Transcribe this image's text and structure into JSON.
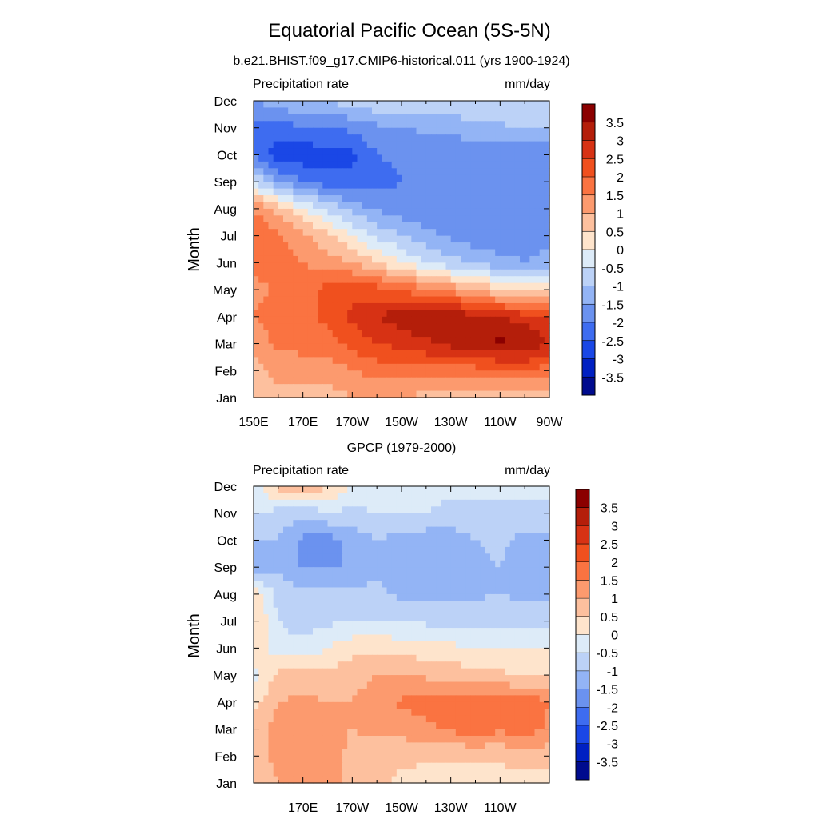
{
  "figure": {
    "title": "Equatorial Pacific Ocean (5S-5N)"
  },
  "chart_data": [
    {
      "type": "heatmap",
      "subtitle": "b.e21.BHIST.f09_g17.CMIP6-historical.011 (yrs 1900-1924)",
      "left_label": "Precipitation rate",
      "right_label": "mm/day",
      "ylabel": "Month",
      "xlabel": "",
      "xticks": [
        "150E",
        "170E",
        "170W",
        "150W",
        "130W",
        "110W",
        "90W"
      ],
      "yticks": [
        "Jan",
        "Feb",
        "Mar",
        "Apr",
        "May",
        "Jun",
        "Jul",
        "Aug",
        "Sep",
        "Oct",
        "Nov",
        "Dec"
      ],
      "xlim_deg_east": [
        150,
        270
      ],
      "colorbar": {
        "labels": [
          "3.5",
          "3",
          "2.5",
          "2",
          "1.5",
          "1",
          "0.5",
          "0",
          "-0.5",
          "-1",
          "-1.5",
          "-2",
          "-2.5",
          "-3",
          "-3.5"
        ],
        "colors": [
          "#8b0000",
          "#b41e0a",
          "#d73214",
          "#f0501e",
          "#fa7341",
          "#fc9a6e",
          "#fdc09e",
          "#fee4cc",
          "#ddebf8",
          "#bcd2f7",
          "#93b4f5",
          "#6b92ef",
          "#3e6cf0",
          "#1a47e6",
          "#0020c2",
          "#000b8e"
        ]
      },
      "x": [
        150,
        160,
        170,
        180,
        190,
        200,
        210,
        220,
        230,
        240,
        250,
        260,
        270
      ],
      "months": [
        "Jan",
        "Feb",
        "Mar",
        "Apr",
        "May",
        "Jun",
        "Jul",
        "Aug",
        "Sep",
        "Oct",
        "Nov",
        "Dec"
      ],
      "values": [
        [
          0.5,
          0.8,
          0.8,
          0.8,
          1.0,
          1.0,
          1.0,
          0.8,
          0.7,
          0.6,
          0.6,
          0.6,
          0.6
        ],
        [
          0.8,
          1.2,
          1.2,
          1.2,
          1.5,
          1.7,
          1.8,
          1.8,
          1.8,
          1.8,
          1.9,
          2.0,
          1.7
        ],
        [
          1.2,
          1.6,
          1.7,
          1.8,
          2.2,
          2.5,
          2.7,
          2.9,
          3.2,
          3.4,
          3.6,
          3.5,
          3.0
        ],
        [
          1.5,
          1.8,
          1.9,
          2.1,
          2.6,
          3.0,
          3.3,
          3.5,
          3.4,
          3.2,
          3.0,
          2.8,
          2.5
        ],
        [
          1.3,
          1.6,
          1.8,
          2.2,
          2.3,
          2.2,
          2.0,
          1.6,
          1.3,
          1.0,
          0.5,
          0.2,
          0.4
        ],
        [
          1.7,
          1.7,
          1.5,
          1.3,
          1.0,
          0.5,
          0.0,
          -0.5,
          -0.8,
          -1.1,
          -1.3,
          -1.5,
          -1.2
        ],
        [
          2.0,
          1.6,
          1.2,
          0.6,
          0.0,
          -0.6,
          -1.0,
          -1.3,
          -1.6,
          -1.8,
          -1.9,
          -1.9,
          -1.7
        ],
        [
          1.5,
          0.8,
          0.0,
          -0.6,
          -1.2,
          -1.6,
          -1.8,
          -1.9,
          -1.9,
          -1.9,
          -1.9,
          -1.9,
          -1.9
        ],
        [
          -0.5,
          -1.5,
          -2.0,
          -2.3,
          -2.4,
          -2.2,
          -2.0,
          -2.0,
          -2.0,
          -2.0,
          -2.0,
          -2.0,
          -2.0
        ],
        [
          -2.0,
          -2.8,
          -2.8,
          -2.7,
          -2.6,
          -2.0,
          -1.9,
          -1.9,
          -1.9,
          -1.9,
          -1.9,
          -1.9,
          -2.0
        ],
        [
          -2.3,
          -2.2,
          -2.1,
          -2.0,
          -1.9,
          -1.6,
          -1.5,
          -1.4,
          -1.3,
          -1.2,
          -1.1,
          -1.0,
          -1.0
        ],
        [
          -1.5,
          -1.2,
          -1.0,
          -0.9,
          -0.8,
          -0.6,
          -0.6,
          -0.6,
          -0.6,
          -0.5,
          -0.5,
          -0.5,
          -0.5
        ]
      ]
    },
    {
      "type": "heatmap",
      "subtitle": "GPCP (1979-2000)",
      "left_label": "Precipitation rate",
      "right_label": "mm/day",
      "ylabel": "Month",
      "xlabel": "",
      "xticks": [
        "170E",
        "170W",
        "150W",
        "130W",
        "110W"
      ],
      "yticks": [
        "Jan",
        "Feb",
        "Mar",
        "Apr",
        "May",
        "Jun",
        "Jul",
        "Aug",
        "Sep",
        "Oct",
        "Nov",
        "Dec"
      ],
      "xlim_deg_east": [
        150,
        270
      ],
      "colorbar": {
        "labels": [
          "3.5",
          "3",
          "2.5",
          "2",
          "1.5",
          "1",
          "0.5",
          "0",
          "-0.5",
          "-1",
          "-1.5",
          "-2",
          "-2.5",
          "-3",
          "-3.5"
        ],
        "colors": [
          "#8b0000",
          "#b41e0a",
          "#d73214",
          "#f0501e",
          "#fa7341",
          "#fc9a6e",
          "#fdc09e",
          "#fee4cc",
          "#ddebf8",
          "#bcd2f7",
          "#93b4f5",
          "#6b92ef",
          "#3e6cf0",
          "#1a47e6",
          "#0020c2",
          "#000b8e"
        ]
      },
      "x": [
        150,
        160,
        170,
        180,
        190,
        200,
        210,
        220,
        230,
        240,
        250,
        260,
        270
      ],
      "months": [
        "Jan",
        "Feb",
        "Mar",
        "Apr",
        "May",
        "Jun",
        "Jul",
        "Aug",
        "Sep",
        "Oct",
        "Nov",
        "Dec"
      ],
      "values": [
        [
          0.6,
          1.0,
          1.4,
          1.3,
          0.8,
          0.6,
          0.4,
          0.3,
          0.3,
          0.3,
          0.3,
          0.3,
          0.3
        ],
        [
          0.6,
          1.2,
          1.3,
          1.2,
          0.9,
          0.7,
          0.6,
          0.6,
          0.6,
          0.6,
          0.6,
          0.8,
          0.7
        ],
        [
          0.7,
          1.3,
          1.3,
          1.1,
          1.0,
          1.1,
          1.2,
          1.4,
          1.6,
          1.7,
          1.6,
          1.7,
          1.4
        ],
        [
          0.3,
          1.0,
          1.1,
          1.0,
          1.0,
          1.3,
          1.6,
          1.7,
          1.7,
          1.8,
          1.7,
          1.8,
          1.5
        ],
        [
          -0.2,
          0.6,
          0.8,
          0.7,
          0.8,
          1.0,
          1.0,
          0.9,
          0.8,
          0.7,
          0.6,
          0.5,
          0.5
        ],
        [
          0.3,
          -0.3,
          -0.4,
          0.0,
          0.3,
          0.4,
          0.3,
          0.2,
          0.1,
          0.0,
          0.0,
          0.0,
          0.0
        ],
        [
          0.6,
          -0.5,
          -0.7,
          -0.6,
          -0.5,
          -0.5,
          -0.6,
          -0.6,
          -0.6,
          -0.6,
          -0.6,
          -0.7,
          -0.7
        ],
        [
          0.3,
          -0.7,
          -0.8,
          -0.8,
          -0.8,
          -0.9,
          -1.1,
          -1.2,
          -1.2,
          -1.1,
          -1.0,
          -1.1,
          -1.1
        ],
        [
          -1.2,
          -1.1,
          -1.6,
          -1.6,
          -1.4,
          -1.1,
          -1.2,
          -1.3,
          -1.3,
          -1.1,
          -1.0,
          -1.2,
          -1.2
        ],
        [
          -1.0,
          -1.0,
          -1.6,
          -1.7,
          -1.3,
          -1.0,
          -1.2,
          -1.3,
          -1.3,
          -1.0,
          -0.9,
          -1.2,
          -1.1
        ],
        [
          -0.4,
          -0.7,
          -0.8,
          -0.6,
          -0.6,
          -0.5,
          -0.5,
          -0.5,
          -0.6,
          -0.6,
          -0.6,
          -0.6,
          -0.6
        ],
        [
          -0.3,
          0.7,
          1.2,
          0.6,
          0.0,
          -0.4,
          -0.4,
          -0.4,
          -0.4,
          -0.4,
          -0.4,
          -0.4,
          -0.4
        ]
      ]
    }
  ]
}
